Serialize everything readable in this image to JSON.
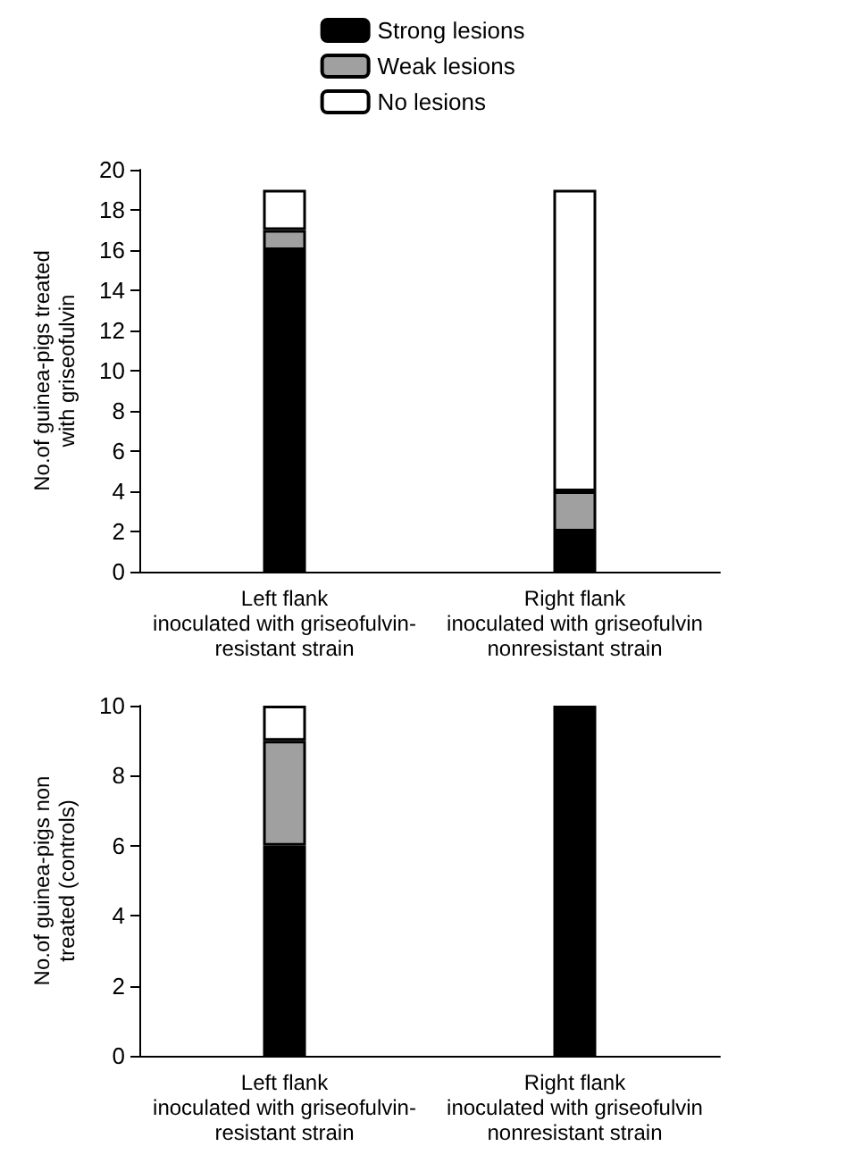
{
  "chart_data": [
    {
      "type": "bar",
      "stacked": true,
      "ylabel": "No.of guinea-pigs treated\nwith griseofulvin",
      "categories": [
        "Left flank\ninoculated with griseofulvin-\nresistant strain",
        "Right flank\ninoculated with griseofulvin\nnonresistant strain"
      ],
      "series": [
        {
          "name": "Strong lesions",
          "color": "#000000",
          "values": [
            16,
            2
          ]
        },
        {
          "name": "Weak lesions",
          "color": "#a0a0a0",
          "values": [
            1,
            2
          ]
        },
        {
          "name": "No lesions",
          "color": "#ffffff",
          "values": [
            2,
            15
          ]
        }
      ],
      "ylim": [
        0,
        20
      ],
      "yticks": [
        0,
        2,
        4,
        6,
        8,
        10,
        12,
        14,
        16,
        18,
        20
      ],
      "grid": false,
      "legend": "top"
    },
    {
      "type": "bar",
      "stacked": true,
      "ylabel": "No.of guinea-pigs non\ntreated (controls)",
      "categories": [
        "Left flank\ninoculated with griseofulvin-\nresistant strain",
        "Right flank\ninoculated with griseofulvin\nnonresistant strain"
      ],
      "series": [
        {
          "color": "#000000",
          "values": [
            6,
            10
          ]
        },
        {
          "color": "#a0a0a0",
          "values": [
            3,
            null
          ]
        },
        {
          "color": "#ffffff",
          "values": [
            1,
            null
          ]
        }
      ],
      "ylim": [
        0,
        10
      ],
      "yticks": [
        0,
        2,
        4,
        6,
        8,
        10
      ],
      "grid": false,
      "legend": false
    }
  ]
}
